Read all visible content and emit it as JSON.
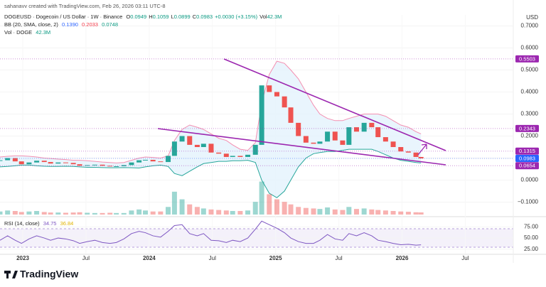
{
  "chart_data": {
    "type": "candlestick",
    "byline": "sahanavv created with TradingView.com, Feb 26, 2026 03:11 UTC-8",
    "legend": {
      "symbol": "DOGEUSD · Dogecoin / US Dollar · 1W · Binance",
      "fields": [
        {
          "key": "O",
          "value": "0.0949"
        },
        {
          "key": "H",
          "value": "0.1059"
        },
        {
          "key": "L",
          "value": "0.0899"
        },
        {
          "key": "C",
          "value": "0.0983"
        },
        {
          "value": "+0.0030 (+3.15%)"
        },
        {
          "key": "Vol",
          "value": "42.3M"
        }
      ]
    },
    "bb_legend": {
      "name": "BB (20, SMA, close, 2)",
      "values": [
        "0.1390",
        "0.2033",
        "0.0748"
      ]
    },
    "vol_legend": {
      "name": "Vol · DOGE",
      "value": "42.3M"
    },
    "rsi_legend": {
      "name": "RSI (14, close)",
      "values": [
        "34.75",
        "36.84"
      ]
    },
    "currency": "USD",
    "brand": "TradingView",
    "up_color": "#26a69a",
    "down_color": "#ef5350",
    "xlim": [
      2022.82,
      2026.88
    ],
    "xticks": [
      2023,
      {
        "value": 2023.5,
        "label": "Jul"
      },
      2024,
      {
        "value": 2024.5,
        "label": "Jul"
      },
      2025,
      {
        "value": 2025.5,
        "label": "Jul"
      },
      2026,
      {
        "value": 2026.5,
        "label": "Jul"
      }
    ],
    "ylim": [
      -0.15,
      0.75
    ],
    "yticks": [
      {
        "value": 0.7,
        "label": "0.7000"
      },
      {
        "value": 0.6,
        "label": "0.6000"
      },
      {
        "value": 0.5,
        "label": "0.5000"
      },
      {
        "value": 0.4,
        "label": "0.4000"
      },
      {
        "value": 0.3,
        "label": "0.3000"
      },
      {
        "value": 0.2,
        "label": "0.2000"
      },
      {
        "value": 0.1,
        "label": "0.1000"
      },
      {
        "value": 0,
        "label": "0.0000"
      },
      {
        "value": -0.1,
        "label": "−0.1000"
      }
    ],
    "x": [
      2022.82,
      2022.88,
      2022.94,
      2022.99,
      2023.05,
      2023.11,
      2023.17,
      2023.22,
      2023.28,
      2023.34,
      2023.4,
      2023.45,
      2023.51,
      2023.57,
      2023.63,
      2023.69,
      2023.74,
      2023.8,
      2023.86,
      2023.92,
      2023.97,
      2024.03,
      2024.09,
      2024.15,
      2024.2,
      2024.26,
      2024.32,
      2024.38,
      2024.43,
      2024.49,
      2024.55,
      2024.61,
      2024.66,
      2024.72,
      2024.78,
      2024.84,
      2024.89,
      2024.95,
      2025.01,
      2025.07,
      2025.12,
      2025.18,
      2025.24,
      2025.3,
      2025.35,
      2025.41,
      2025.47,
      2025.53,
      2025.58,
      2025.64,
      2025.7,
      2025.76,
      2025.81,
      2025.87,
      2025.93,
      2025.99,
      2026.05,
      2026.11,
      2026.15
    ],
    "series": [
      {
        "name": "DOGEUSD",
        "values": [
          0.09,
          0.1,
          0.085,
          0.072,
          0.08,
          0.088,
          0.082,
          0.075,
          0.08,
          0.078,
          0.072,
          0.065,
          0.068,
          0.07,
          0.065,
          0.062,
          0.063,
          0.068,
          0.08,
          0.09,
          0.092,
          0.085,
          0.082,
          0.11,
          0.175,
          0.2,
          0.16,
          0.15,
          0.165,
          0.125,
          0.12,
          0.105,
          0.11,
          0.105,
          0.115,
          0.16,
          0.43,
          0.4,
          0.38,
          0.33,
          0.26,
          0.2,
          0.17,
          0.165,
          0.175,
          0.22,
          0.18,
          0.16,
          0.24,
          0.22,
          0.26,
          0.24,
          0.195,
          0.175,
          0.15,
          0.13,
          0.125,
          0.105,
          0.0983
        ]
      }
    ],
    "bb": {
      "upper_color": "#f48fb1",
      "lower_color": "#26a69a",
      "fill": "#e3f2fd",
      "upper": [
        0.105,
        0.108,
        0.11,
        0.11,
        0.108,
        0.105,
        0.1,
        0.098,
        0.095,
        0.093,
        0.09,
        0.09,
        0.088,
        0.085,
        0.082,
        0.08,
        0.078,
        0.08,
        0.09,
        0.1,
        0.105,
        0.103,
        0.1,
        0.11,
        0.18,
        0.23,
        0.25,
        0.24,
        0.23,
        0.21,
        0.19,
        0.18,
        0.16,
        0.14,
        0.135,
        0.17,
        0.35,
        0.48,
        0.54,
        0.53,
        0.5,
        0.46,
        0.4,
        0.34,
        0.3,
        0.28,
        0.27,
        0.27,
        0.28,
        0.29,
        0.3,
        0.3,
        0.3,
        0.29,
        0.27,
        0.25,
        0.24,
        0.22,
        0.21
      ],
      "lower": [
        0.06,
        0.062,
        0.065,
        0.068,
        0.068,
        0.065,
        0.063,
        0.062,
        0.062,
        0.063,
        0.062,
        0.06,
        0.058,
        0.058,
        0.057,
        0.056,
        0.056,
        0.057,
        0.056,
        0.055,
        0.06,
        0.065,
        0.068,
        0.062,
        0.03,
        0.02,
        0.04,
        0.06,
        0.075,
        0.08,
        0.085,
        0.085,
        0.088,
        0.088,
        0.09,
        0.08,
        0.0,
        -0.06,
        -0.08,
        -0.05,
        0.0,
        0.06,
        0.1,
        0.12,
        0.125,
        0.13,
        0.13,
        0.135,
        0.14,
        0.14,
        0.14,
        0.14,
        0.13,
        0.115,
        0.1,
        0.09,
        0.085,
        0.08,
        0.078
      ]
    },
    "volume_ylim": [
      0,
      700
    ],
    "volume": [
      60,
      80,
      70,
      50,
      60,
      70,
      50,
      40,
      40,
      35,
      40,
      45,
      35,
      30,
      30,
      35,
      30,
      30,
      80,
      100,
      80,
      60,
      60,
      150,
      450,
      300,
      200,
      150,
      120,
      100,
      90,
      80,
      70,
      70,
      80,
      250,
      650,
      400,
      300,
      250,
      200,
      150,
      130,
      120,
      110,
      140,
      100,
      90,
      150,
      110,
      120,
      100,
      90,
      80,
      70,
      60,
      55,
      45,
      42.3
    ],
    "rsi_color": "#7e57c2",
    "rsi_ylim": [
      15,
      90
    ],
    "rsi_yticks": [
      {
        "value": 75,
        "label": "75.00"
      },
      {
        "value": 50,
        "label": "50.00"
      },
      {
        "value": 25,
        "label": "25.00"
      }
    ],
    "rsi": [
      45,
      55,
      45,
      38,
      48,
      55,
      50,
      45,
      50,
      48,
      44,
      38,
      42,
      45,
      40,
      38,
      40,
      48,
      60,
      65,
      62,
      55,
      52,
      65,
      78,
      80,
      60,
      55,
      60,
      45,
      44,
      40,
      45,
      42,
      50,
      70,
      88,
      80,
      72,
      62,
      50,
      42,
      38,
      38,
      45,
      58,
      48,
      45,
      60,
      55,
      62,
      55,
      45,
      42,
      38,
      35,
      36,
      34,
      34.75
    ],
    "price_labels": [
      {
        "value": 0.5503,
        "color": "#9c27b0"
      },
      {
        "value": 0.2343,
        "color": "#9c27b0"
      },
      {
        "value": 0.1315,
        "color": "#9c27b0"
      },
      {
        "value": 0.0983,
        "color": "#2962ff"
      },
      {
        "value": 0.0654,
        "color": "#9c27b0"
      }
    ]
  }
}
